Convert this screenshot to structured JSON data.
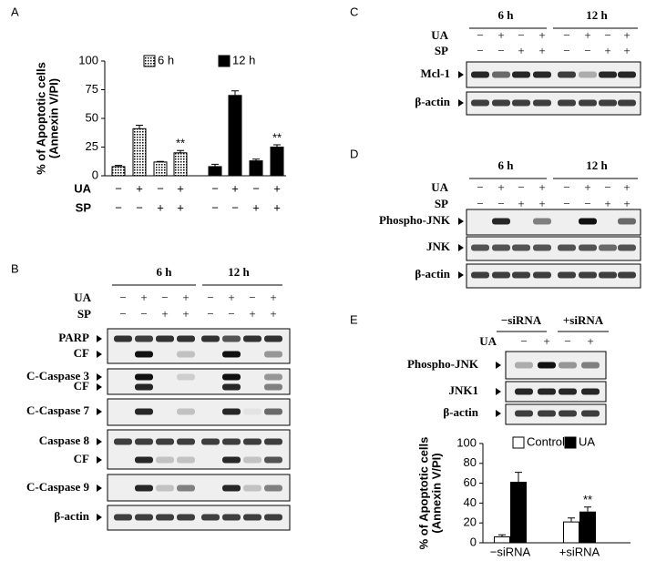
{
  "panel_labels": [
    "A",
    "B",
    "C",
    "D",
    "E"
  ],
  "chart_data": [
    {
      "type": "bar",
      "y_label": [
        "% of Apoptotic cells",
        "(Annexin V/PI)"
      ],
      "ylim": [
        0,
        100
      ],
      "yticks": [
        0,
        25,
        50,
        75,
        100
      ],
      "series": [
        {
          "name": "6 h",
          "color": "#ffffff",
          "pattern": "dots",
          "values": [
            8,
            41,
            12,
            20,
            null,
            null,
            null,
            null
          ],
          "errors": [
            1,
            3,
            0.5,
            2,
            null,
            null,
            null,
            null
          ],
          "significance": [
            null,
            null,
            null,
            "**",
            null,
            null,
            null,
            null
          ]
        },
        {
          "name": "12 h",
          "color": "#000000",
          "values": [
            null,
            null,
            null,
            null,
            8,
            70,
            13,
            25
          ],
          "errors": [
            null,
            null,
            null,
            null,
            2,
            4,
            1.5,
            2
          ],
          "significance": [
            null,
            null,
            null,
            null,
            null,
            null,
            null,
            "**"
          ]
        }
      ],
      "treatments": [
        {
          "label": "UA",
          "signs": [
            "−",
            "+",
            "−",
            "+",
            "−",
            "+",
            "−",
            "+"
          ]
        },
        {
          "label": "SP",
          "signs": [
            "−",
            "−",
            "+",
            "+",
            "−",
            "−",
            "+",
            "+"
          ]
        }
      ]
    },
    {
      "type": "bar",
      "y_label": [
        "% of Apoptotic cells",
        "(Annexin V/PI)"
      ],
      "categories": [
        "−siRNA",
        "+siRNA"
      ],
      "ylim": [
        0,
        100
      ],
      "yticks": [
        0,
        20,
        40,
        60,
        80,
        100
      ],
      "series": [
        {
          "name": "Control",
          "color": "#ffffff",
          "values": [
            6,
            21
          ],
          "errors": [
            2,
            4
          ],
          "significance": [
            null,
            null
          ]
        },
        {
          "name": "UA",
          "color": "#000000",
          "values": [
            61,
            31
          ],
          "errors": [
            10,
            5
          ],
          "significance": [
            null,
            "**"
          ]
        }
      ]
    }
  ],
  "blots": {
    "B": {
      "time_labels": [
        "6 h",
        "12 h"
      ],
      "treatments": [
        {
          "label": "UA",
          "signs": [
            "−",
            "+",
            "−",
            "+",
            "−",
            "+",
            "−",
            "+"
          ]
        },
        {
          "label": "SP",
          "signs": [
            "−",
            "−",
            "+",
            "+",
            "−",
            "−",
            "+",
            "+"
          ]
        }
      ],
      "bands": [
        "PARP",
        "CF",
        "C-Caspase 3",
        "CF",
        "C-Caspase 7",
        "Caspase 8",
        "CF",
        "C-Caspase 9",
        "β-actin"
      ]
    },
    "C": {
      "time_labels": [
        "6 h",
        "12 h"
      ],
      "treatments": [
        {
          "label": "UA",
          "signs": [
            "−",
            "+",
            "−",
            "+",
            "−",
            "+",
            "−",
            "+"
          ]
        },
        {
          "label": "SP",
          "signs": [
            "−",
            "−",
            "+",
            "+",
            "−",
            "−",
            "+",
            "+"
          ]
        }
      ],
      "bands": [
        "Mcl-1",
        "β-actin"
      ]
    },
    "D": {
      "time_labels": [
        "6 h",
        "12 h"
      ],
      "treatments": [
        {
          "label": "UA",
          "signs": [
            "−",
            "+",
            "−",
            "+",
            "−",
            "+",
            "−",
            "+"
          ]
        },
        {
          "label": "SP",
          "signs": [
            "−",
            "−",
            "+",
            "+",
            "−",
            "−",
            "+",
            "+"
          ]
        }
      ],
      "bands": [
        "Phospho-JNK",
        "JNK",
        "β-actin"
      ]
    },
    "E": {
      "time_labels": [
        "−siRNA",
        "+siRNA"
      ],
      "treatments": [
        {
          "label": "UA",
          "signs": [
            "−",
            "+",
            "−",
            "+"
          ]
        }
      ],
      "bands": [
        "Phospho-JNK",
        "JNK1",
        "β-actin"
      ]
    }
  }
}
